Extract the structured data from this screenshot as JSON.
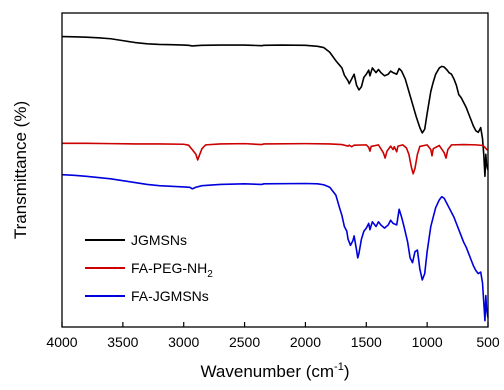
{
  "chart_data": {
    "type": "line",
    "xlabel": "Wavenumber (cm",
    "xlabel_sup": "-1",
    "xlabel_end": ")",
    "ylabel": "Transmittance (%)",
    "xlim": [
      4000,
      500
    ],
    "x_reversed": true,
    "x_ticks": [
      4000,
      3500,
      3000,
      2500,
      2000,
      1500,
      1000,
      500
    ],
    "ylim": [
      0,
      100
    ],
    "y_tick_labels": "none",
    "grid": false,
    "legend_position": "lower-left",
    "series": [
      {
        "name": "JGMSNs",
        "legend_parts": [
          "JGMSNs"
        ],
        "color": "#000000",
        "points": [
          [
            4000,
            92.5
          ],
          [
            3900,
            92.4
          ],
          [
            3800,
            92.3
          ],
          [
            3700,
            92.1
          ],
          [
            3600,
            91.8
          ],
          [
            3500,
            91.2
          ],
          [
            3400,
            90.6
          ],
          [
            3300,
            90.2
          ],
          [
            3200,
            90.0
          ],
          [
            3100,
            89.9
          ],
          [
            3000,
            89.8
          ],
          [
            2960,
            89.7
          ],
          [
            2930,
            89.5
          ],
          [
            2900,
            89.6
          ],
          [
            2850,
            89.7
          ],
          [
            2700,
            89.8
          ],
          [
            2500,
            89.8
          ],
          [
            2360,
            89.6
          ],
          [
            2340,
            89.7
          ],
          [
            2200,
            89.8
          ],
          [
            2000,
            89.7
          ],
          [
            1900,
            89.4
          ],
          [
            1850,
            89.0
          ],
          [
            1800,
            87.5
          ],
          [
            1750,
            84.8
          ],
          [
            1700,
            82.5
          ],
          [
            1680,
            80.2
          ],
          [
            1650,
            78.4
          ],
          [
            1640,
            77.5
          ],
          [
            1620,
            79.0
          ],
          [
            1600,
            80.5
          ],
          [
            1580,
            77.0
          ],
          [
            1560,
            75.5
          ],
          [
            1540,
            76.5
          ],
          [
            1520,
            79.5
          ],
          [
            1500,
            80.5
          ],
          [
            1480,
            81.8
          ],
          [
            1470,
            80.0
          ],
          [
            1450,
            82.5
          ],
          [
            1420,
            81.0
          ],
          [
            1400,
            82.0
          ],
          [
            1380,
            81.0
          ],
          [
            1350,
            80.0
          ],
          [
            1320,
            80.5
          ],
          [
            1300,
            81.5
          ],
          [
            1280,
            81.0
          ],
          [
            1250,
            80.5
          ],
          [
            1230,
            82.3
          ],
          [
            1210,
            81.5
          ],
          [
            1180,
            79.0
          ],
          [
            1150,
            75.0
          ],
          [
            1120,
            71.0
          ],
          [
            1090,
            67.0
          ],
          [
            1060,
            63.5
          ],
          [
            1040,
            61.8
          ],
          [
            1020,
            63.0
          ],
          [
            1000,
            68.0
          ],
          [
            970,
            75.0
          ],
          [
            950,
            78.0
          ],
          [
            930,
            80.5
          ],
          [
            900,
            82.5
          ],
          [
            880,
            83.0
          ],
          [
            860,
            82.8
          ],
          [
            840,
            82.0
          ],
          [
            820,
            81.0
          ],
          [
            800,
            80.5
          ],
          [
            780,
            79.0
          ],
          [
            760,
            77.0
          ],
          [
            740,
            74.0
          ],
          [
            720,
            73.0
          ],
          [
            700,
            71.5
          ],
          [
            680,
            70.0
          ],
          [
            660,
            68.0
          ],
          [
            640,
            66.0
          ],
          [
            620,
            64.0
          ],
          [
            600,
            62.5
          ],
          [
            580,
            62.0
          ],
          [
            560,
            63.5
          ],
          [
            545,
            60.0
          ],
          [
            535,
            55.0
          ],
          [
            525,
            48.0
          ],
          [
            518,
            55.0
          ],
          [
            512,
            52.0
          ],
          [
            505,
            50.5
          ],
          [
            500,
            50.0
          ]
        ]
      },
      {
        "name": "FA-PEG-NH2",
        "legend_parts": [
          "FA-PEG-NH",
          "2"
        ],
        "color": "#cc0000",
        "points": [
          [
            4000,
            58.5
          ],
          [
            3800,
            58.5
          ],
          [
            3600,
            58.4
          ],
          [
            3400,
            58.3
          ],
          [
            3200,
            58.3
          ],
          [
            3000,
            58.2
          ],
          [
            2960,
            57.9
          ],
          [
            2930,
            56.5
          ],
          [
            2900,
            55.0
          ],
          [
            2885,
            53.2
          ],
          [
            2870,
            54.8
          ],
          [
            2850,
            56.8
          ],
          [
            2820,
            58.0
          ],
          [
            2700,
            58.3
          ],
          [
            2500,
            58.4
          ],
          [
            2360,
            58.1
          ],
          [
            2340,
            58.3
          ],
          [
            2000,
            58.4
          ],
          [
            1800,
            58.3
          ],
          [
            1700,
            58.1
          ],
          [
            1650,
            57.6
          ],
          [
            1640,
            57.9
          ],
          [
            1620,
            57.4
          ],
          [
            1600,
            57.9
          ],
          [
            1500,
            58.0
          ],
          [
            1480,
            57.2
          ],
          [
            1470,
            56.0
          ],
          [
            1460,
            57.5
          ],
          [
            1400,
            58.0
          ],
          [
            1360,
            55.5
          ],
          [
            1345,
            53.8
          ],
          [
            1330,
            56.0
          ],
          [
            1300,
            57.6
          ],
          [
            1280,
            56.5
          ],
          [
            1270,
            57.4
          ],
          [
            1250,
            55.8
          ],
          [
            1240,
            57.6
          ],
          [
            1200,
            58.0
          ],
          [
            1170,
            57.0
          ],
          [
            1150,
            55.0
          ],
          [
            1130,
            51.0
          ],
          [
            1115,
            48.8
          ],
          [
            1100,
            50.5
          ],
          [
            1080,
            55.0
          ],
          [
            1060,
            57.5
          ],
          [
            1000,
            58.0
          ],
          [
            970,
            56.5
          ],
          [
            960,
            54.5
          ],
          [
            950,
            56.8
          ],
          [
            900,
            57.8
          ],
          [
            860,
            55.5
          ],
          [
            845,
            53.8
          ],
          [
            830,
            56.5
          ],
          [
            800,
            58.0
          ],
          [
            700,
            58.1
          ],
          [
            600,
            58.0
          ],
          [
            540,
            57.8
          ],
          [
            520,
            57.0
          ],
          [
            510,
            56.5
          ],
          [
            500,
            56.5
          ]
        ]
      },
      {
        "name": "FA-JGMSNs",
        "legend_parts": [
          "FA-JGMSNs"
        ],
        "color": "#0000dd",
        "points": [
          [
            4000,
            48.5
          ],
          [
            3900,
            48.3
          ],
          [
            3800,
            48.0
          ],
          [
            3700,
            47.6
          ],
          [
            3600,
            47.2
          ],
          [
            3500,
            46.6
          ],
          [
            3400,
            46.0
          ],
          [
            3300,
            45.4
          ],
          [
            3200,
            45.0
          ],
          [
            3100,
            44.8
          ],
          [
            3000,
            44.6
          ],
          [
            2950,
            44.5
          ],
          [
            2930,
            44.0
          ],
          [
            2900,
            44.5
          ],
          [
            2850,
            45.0
          ],
          [
            2700,
            45.4
          ],
          [
            2500,
            45.6
          ],
          [
            2360,
            45.4
          ],
          [
            2340,
            45.6
          ],
          [
            2000,
            45.7
          ],
          [
            1900,
            45.6
          ],
          [
            1850,
            45.3
          ],
          [
            1800,
            44.5
          ],
          [
            1750,
            42.0
          ],
          [
            1720,
            38.0
          ],
          [
            1700,
            35.5
          ],
          [
            1680,
            32.0
          ],
          [
            1660,
            30.5
          ],
          [
            1650,
            28.0
          ],
          [
            1630,
            26.0
          ],
          [
            1610,
            27.5
          ],
          [
            1600,
            29.0
          ],
          [
            1580,
            24.5
          ],
          [
            1570,
            22.0
          ],
          [
            1560,
            23.5
          ],
          [
            1540,
            28.0
          ],
          [
            1520,
            30.5
          ],
          [
            1500,
            31.5
          ],
          [
            1480,
            33.0
          ],
          [
            1470,
            31.0
          ],
          [
            1450,
            33.5
          ],
          [
            1420,
            32.0
          ],
          [
            1400,
            33.5
          ],
          [
            1380,
            32.5
          ],
          [
            1350,
            31.5
          ],
          [
            1320,
            32.5
          ],
          [
            1300,
            34.0
          ],
          [
            1280,
            33.0
          ],
          [
            1250,
            32.5
          ],
          [
            1230,
            37.5
          ],
          [
            1210,
            35.0
          ],
          [
            1190,
            32.0
          ],
          [
            1160,
            27.0
          ],
          [
            1140,
            22.0
          ],
          [
            1120,
            20.5
          ],
          [
            1100,
            24.0
          ],
          [
            1080,
            24.5
          ],
          [
            1060,
            18.5
          ],
          [
            1040,
            15.0
          ],
          [
            1020,
            17.0
          ],
          [
            1000,
            24.0
          ],
          [
            970,
            32.0
          ],
          [
            950,
            35.0
          ],
          [
            930,
            38.0
          ],
          [
            900,
            40.5
          ],
          [
            880,
            41.5
          ],
          [
            860,
            41.0
          ],
          [
            840,
            39.5
          ],
          [
            820,
            38.0
          ],
          [
            800,
            36.5
          ],
          [
            780,
            35.0
          ],
          [
            760,
            33.0
          ],
          [
            740,
            31.0
          ],
          [
            720,
            29.0
          ],
          [
            700,
            27.0
          ],
          [
            680,
            25.5
          ],
          [
            660,
            23.5
          ],
          [
            640,
            21.5
          ],
          [
            620,
            19.5
          ],
          [
            600,
            18.0
          ],
          [
            580,
            17.0
          ],
          [
            560,
            17.5
          ],
          [
            545,
            14.0
          ],
          [
            535,
            8.0
          ],
          [
            525,
            2.0
          ],
          [
            518,
            10.0
          ],
          [
            512,
            6.0
          ],
          [
            505,
            4.0
          ],
          [
            500,
            3.0
          ]
        ]
      }
    ]
  }
}
